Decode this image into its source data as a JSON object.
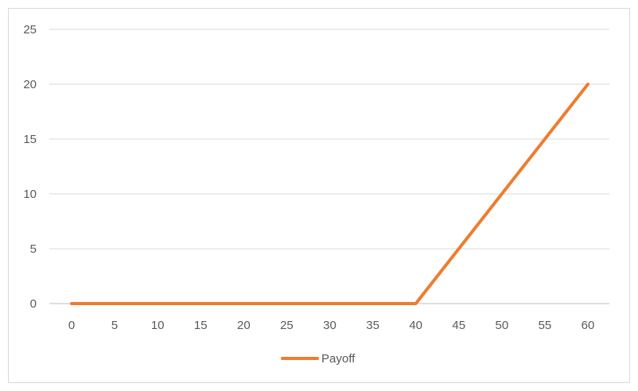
{
  "chart_data": {
    "type": "line",
    "title": "",
    "xlabel": "",
    "ylabel": "",
    "categories": [
      "0",
      "5",
      "10",
      "15",
      "20",
      "25",
      "30",
      "35",
      "40",
      "45",
      "50",
      "55",
      "60"
    ],
    "x": [
      0,
      5,
      10,
      15,
      20,
      25,
      30,
      35,
      40,
      45,
      50,
      55,
      60
    ],
    "series": [
      {
        "name": "Payoff",
        "color": "#ed7d31",
        "values": [
          0,
          0,
          0,
          0,
          0,
          0,
          0,
          0,
          0,
          5,
          10,
          15,
          20
        ]
      }
    ],
    "ylim": [
      0,
      25
    ],
    "yticks": [
      0,
      5,
      10,
      15,
      20,
      25
    ],
    "grid": "horizontal",
    "legend": "bottom",
    "gridline_color": "#d9d9d9",
    "axis_line_color": "#bfbfbf"
  }
}
